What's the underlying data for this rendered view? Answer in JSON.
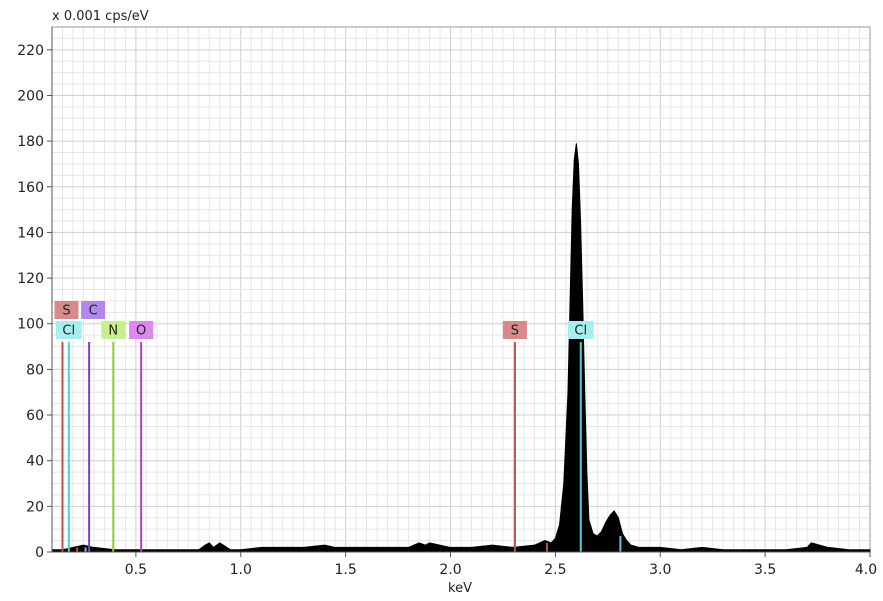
{
  "chart_data": {
    "type": "area",
    "ylabel": "x 0.001 cps/eV",
    "xlabel": "keV",
    "xlim": [
      0.1,
      4.0
    ],
    "ylim": [
      0,
      230
    ],
    "x_ticks": [
      {
        "value": 0.5,
        "label": "0.5"
      },
      {
        "value": 1.0,
        "label": "1.0"
      },
      {
        "value": 1.5,
        "label": "1.5"
      },
      {
        "value": 2.0,
        "label": "2.0"
      },
      {
        "value": 2.5,
        "label": "2.5"
      },
      {
        "value": 3.0,
        "label": "3.0"
      },
      {
        "value": 3.5,
        "label": "3.5"
      },
      {
        "value": 4.0,
        "label": "4.0"
      }
    ],
    "y_ticks": [
      {
        "value": 0,
        "label": "0"
      },
      {
        "value": 20,
        "label": "20"
      },
      {
        "value": 40,
        "label": "40"
      },
      {
        "value": 60,
        "label": "60"
      },
      {
        "value": 80,
        "label": "80"
      },
      {
        "value": 100,
        "label": "100"
      },
      {
        "value": 120,
        "label": "120"
      },
      {
        "value": 140,
        "label": "140"
      },
      {
        "value": 160,
        "label": "160"
      },
      {
        "value": 180,
        "label": "180"
      },
      {
        "value": 200,
        "label": "200"
      },
      {
        "value": 220,
        "label": "220"
      }
    ],
    "grid": true,
    "spectrum": {
      "color": "#000000",
      "x": [
        0.1,
        0.15,
        0.2,
        0.25,
        0.3,
        0.4,
        0.5,
        0.6,
        0.7,
        0.8,
        0.83,
        0.85,
        0.87,
        0.9,
        0.95,
        1.0,
        1.1,
        1.2,
        1.3,
        1.4,
        1.45,
        1.5,
        1.6,
        1.7,
        1.8,
        1.85,
        1.88,
        1.9,
        2.0,
        2.1,
        2.2,
        2.3,
        2.4,
        2.45,
        2.48,
        2.5,
        2.52,
        2.54,
        2.56,
        2.57,
        2.58,
        2.59,
        2.6,
        2.61,
        2.62,
        2.63,
        2.64,
        2.65,
        2.66,
        2.68,
        2.7,
        2.72,
        2.74,
        2.76,
        2.78,
        2.8,
        2.82,
        2.84,
        2.86,
        2.9,
        2.95,
        3.0,
        3.1,
        3.2,
        3.3,
        3.4,
        3.5,
        3.6,
        3.7,
        3.72,
        3.8,
        3.9,
        4.0
      ],
      "y": [
        1,
        1,
        2,
        3,
        2,
        1,
        1,
        1,
        1,
        1,
        3,
        4,
        2,
        4,
        1,
        1,
        2,
        2,
        2,
        3,
        2,
        2,
        2,
        2,
        2,
        4,
        3,
        4,
        2,
        2,
        3,
        2,
        3,
        5,
        4,
        6,
        12,
        30,
        70,
        110,
        150,
        172,
        179,
        170,
        145,
        110,
        70,
        35,
        14,
        8,
        7,
        9,
        13,
        16,
        18,
        15,
        8,
        5,
        3,
        2,
        2,
        2,
        1,
        2,
        1,
        1,
        1,
        1,
        2,
        4,
        2,
        1,
        1
      ]
    },
    "element_markers": [
      {
        "label": "S",
        "energy": 0.15,
        "height": 92,
        "color": "#c0504d",
        "box": "#d9898a",
        "row": "upper"
      },
      {
        "label": "Cl",
        "energy": 0.18,
        "height": 92,
        "color": "#4fd0d8",
        "box": "#a6eef2",
        "row": "lower"
      },
      {
        "label": "C",
        "energy": 0.277,
        "height": 92,
        "color": "#7a3fd1",
        "box": "#b487ee",
        "row": "upper"
      },
      {
        "label": "N",
        "energy": 0.392,
        "height": 92,
        "color": "#8ed23a",
        "box": "#c5f08a",
        "row": "lower"
      },
      {
        "label": "O",
        "energy": 0.525,
        "height": 92,
        "color": "#b040d0",
        "box": "#dd88ee",
        "row": "lower"
      },
      {
        "label": "S",
        "energy": 2.307,
        "height": 92,
        "color": "#c0504d",
        "box": "#d9898a",
        "row": "lower"
      },
      {
        "label": "Cl",
        "energy": 2.621,
        "height": 92,
        "color": "#4fd0d8",
        "box": "#a6eef2",
        "row": "lower"
      }
    ],
    "small_ticks": [
      {
        "energy": 0.22,
        "height": 2,
        "color": "#c0504d"
      },
      {
        "energy": 0.26,
        "height": 2,
        "color": "#4fd0d8"
      },
      {
        "energy": 2.46,
        "height": 4,
        "color": "#c0504d"
      },
      {
        "energy": 2.81,
        "height": 7,
        "color": "#4fd0d8"
      }
    ]
  }
}
